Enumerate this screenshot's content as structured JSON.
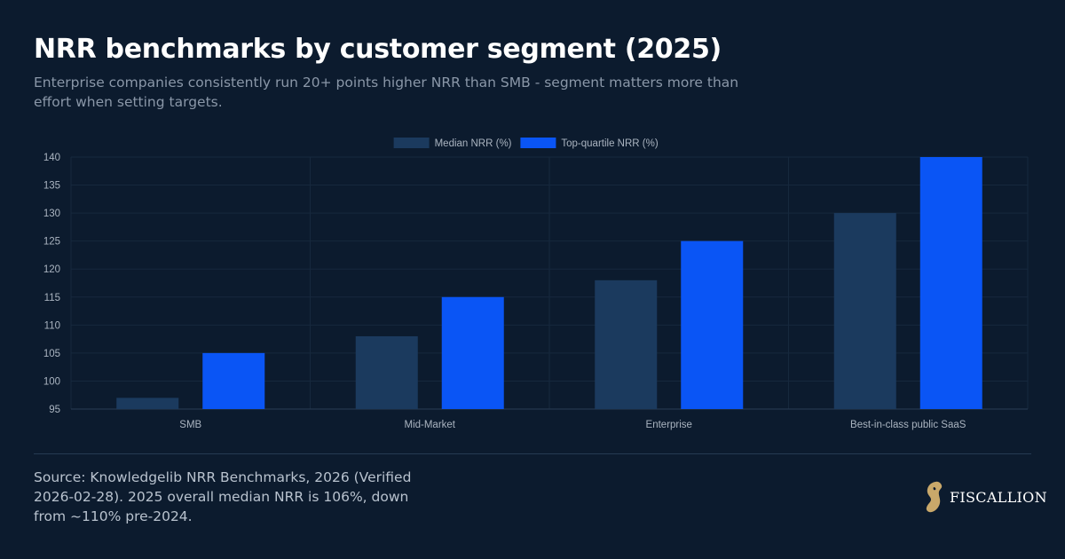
{
  "title": "NRR benchmarks by customer segment (2025)",
  "subtitle": "Enterprise companies consistently run 20+ points higher NRR than SMB - segment matters more than effort when setting targets.",
  "source": "Source: Knowledgelib NRR Benchmarks, 2026 (Verified 2026-02-28). 2025 overall median NRR is 106%, down from ~110% pre-2024.",
  "brand": {
    "name": "FISCALLION",
    "icon": "horse-head-logo",
    "logo_color": "#c9a86a"
  },
  "chart_data": {
    "type": "bar",
    "categories": [
      "SMB",
      "Mid-Market",
      "Enterprise",
      "Best-in-class public SaaS"
    ],
    "series": [
      {
        "name": "Median NRR (%)",
        "values": [
          97,
          108,
          118,
          130
        ],
        "color": "#1b3a5e"
      },
      {
        "name": "Top-quartile NRR (%)",
        "values": [
          105,
          115,
          125,
          140
        ],
        "color": "#0a55f5"
      }
    ],
    "ylim": [
      95,
      140
    ],
    "yticks": [
      95,
      100,
      105,
      110,
      115,
      120,
      125,
      130,
      135,
      140
    ],
    "grid": true,
    "legend": "top-center"
  }
}
